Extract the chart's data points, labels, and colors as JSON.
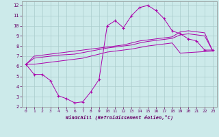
{
  "bg_color": "#cceaea",
  "line_color": "#aa00aa",
  "grid_color": "#aacccc",
  "xlim": [
    -0.5,
    23.5
  ],
  "ylim": [
    2,
    12.4
  ],
  "xticks": [
    0,
    1,
    2,
    3,
    4,
    5,
    6,
    7,
    8,
    9,
    10,
    11,
    12,
    13,
    14,
    15,
    16,
    17,
    18,
    19,
    20,
    21,
    22,
    23
  ],
  "yticks": [
    2,
    3,
    4,
    5,
    6,
    7,
    8,
    9,
    10,
    11,
    12
  ],
  "xlabel": "Windchill (Refroidissement éolien,°C)",
  "line1_x": [
    0,
    1,
    2,
    3,
    4,
    5,
    6,
    7,
    8,
    9,
    10,
    11,
    12,
    13,
    14,
    15,
    16,
    17,
    18,
    19,
    20,
    21,
    22,
    23
  ],
  "line1_y": [
    6.2,
    5.2,
    5.2,
    4.6,
    3.1,
    2.8,
    2.4,
    2.5,
    3.5,
    4.7,
    10.0,
    10.5,
    9.8,
    11.0,
    11.8,
    12.0,
    11.5,
    10.7,
    9.5,
    9.2,
    8.7,
    8.5,
    7.6,
    7.6
  ],
  "line2_x": [
    0,
    1,
    2,
    3,
    4,
    5,
    6,
    7,
    8,
    9,
    10,
    11,
    12,
    13,
    14,
    15,
    16,
    17,
    18,
    19,
    20,
    21,
    22,
    23
  ],
  "line2_y": [
    6.2,
    7.0,
    7.1,
    7.2,
    7.3,
    7.4,
    7.5,
    7.6,
    7.7,
    7.8,
    7.9,
    8.0,
    8.1,
    8.3,
    8.5,
    8.6,
    8.7,
    8.8,
    8.9,
    9.4,
    9.5,
    9.4,
    9.3,
    7.5
  ],
  "line3_x": [
    0,
    1,
    2,
    3,
    4,
    5,
    6,
    7,
    8,
    9,
    10,
    11,
    12,
    13,
    14,
    15,
    16,
    17,
    18,
    19,
    20,
    21,
    22,
    23
  ],
  "line3_y": [
    6.2,
    6.8,
    6.9,
    7.0,
    7.1,
    7.15,
    7.2,
    7.35,
    7.5,
    7.65,
    7.8,
    7.9,
    8.0,
    8.1,
    8.3,
    8.45,
    8.55,
    8.65,
    8.75,
    9.1,
    9.2,
    9.1,
    9.0,
    7.5
  ],
  "line4_x": [
    0,
    1,
    2,
    3,
    4,
    5,
    6,
    7,
    8,
    9,
    10,
    11,
    12,
    13,
    14,
    15,
    16,
    17,
    18,
    19,
    20,
    21,
    22,
    23
  ],
  "line4_y": [
    6.2,
    6.2,
    6.3,
    6.4,
    6.5,
    6.6,
    6.7,
    6.8,
    7.0,
    7.2,
    7.4,
    7.5,
    7.6,
    7.7,
    7.85,
    8.0,
    8.1,
    8.2,
    8.3,
    7.3,
    7.35,
    7.4,
    7.45,
    7.5
  ]
}
